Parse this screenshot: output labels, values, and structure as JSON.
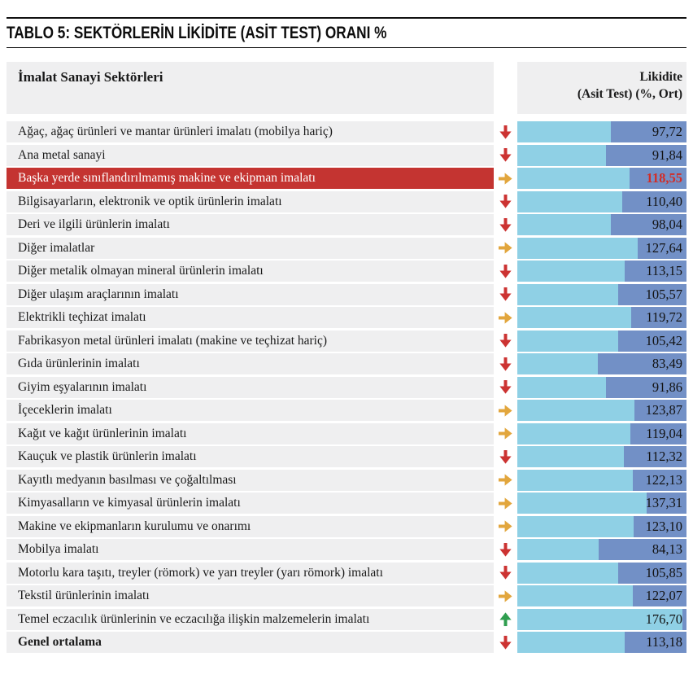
{
  "title": "TABLO 5: SEKTÖRLERİN LİKİDİTE (ASİT TEST) ORANI %",
  "header": {
    "left": "İmalat Sanayi Sektörleri",
    "right_line1": "Likidite",
    "right_line2": "(Asit Test) (%, Ort)"
  },
  "colors": {
    "band_gray": "#efeff0",
    "bar_light_blue": "#8fd0e5",
    "bar_dark_blue": "#7290c6",
    "highlight_row_red": "#c43431",
    "highlight_value_red": "#d32c26",
    "arrow_down_red": "#cc3332",
    "arrow_right_orange": "#e2a63d",
    "arrow_up_green": "#2f9e4f"
  },
  "icons": {
    "down": "down-arrow-icon",
    "right": "right-arrow-icon",
    "up": "up-arrow-icon"
  },
  "rows": [
    {
      "label": "Ağaç, ağaç ürünleri ve mantar ürünleri imalatı (mobilya hariç)",
      "trend": "down",
      "value": "97,72",
      "value_num": 97.72,
      "highlight": false,
      "bold": false
    },
    {
      "label": "Ana metal sanayi",
      "trend": "down",
      "value": "91,84",
      "value_num": 91.84,
      "highlight": false,
      "bold": false
    },
    {
      "label": "Başka yerde sınıflandırılmamış makine ve ekipman imalatı",
      "trend": "right",
      "value": "118,55",
      "value_num": 118.55,
      "highlight": true,
      "bold": false
    },
    {
      "label": "Bilgisayarların, elektronik ve optik ürünlerin imalatı",
      "trend": "down",
      "value": "110,40",
      "value_num": 110.4,
      "highlight": false,
      "bold": false
    },
    {
      "label": "Deri ve ilgili ürünlerin imalatı",
      "trend": "down",
      "value": "98,04",
      "value_num": 98.04,
      "highlight": false,
      "bold": false
    },
    {
      "label": "Diğer imalatlar",
      "trend": "right",
      "value": "127,64",
      "value_num": 127.64,
      "highlight": false,
      "bold": false
    },
    {
      "label": "Diğer metalik olmayan mineral ürünlerin imalatı",
      "trend": "down",
      "value": "113,15",
      "value_num": 113.15,
      "highlight": false,
      "bold": false
    },
    {
      "label": "Diğer ulaşım araçlarının imalatı",
      "trend": "down",
      "value": "105,57",
      "value_num": 105.57,
      "highlight": false,
      "bold": false
    },
    {
      "label": "Elektrikli teçhizat imalatı",
      "trend": "right",
      "value": "119,72",
      "value_num": 119.72,
      "highlight": false,
      "bold": false
    },
    {
      "label": "Fabrikasyon metal ürünleri imalatı (makine ve teçhizat hariç)",
      "trend": "down",
      "value": "105,42",
      "value_num": 105.42,
      "highlight": false,
      "bold": false
    },
    {
      "label": "Gıda ürünlerinin imalatı",
      "trend": "down",
      "value": "83,49",
      "value_num": 83.49,
      "highlight": false,
      "bold": false
    },
    {
      "label": "Giyim eşyalarının imalatı",
      "trend": "down",
      "value": "91,86",
      "value_num": 91.86,
      "highlight": false,
      "bold": false
    },
    {
      "label": "İçeceklerin imalatı",
      "trend": "right",
      "value": "123,87",
      "value_num": 123.87,
      "highlight": false,
      "bold": false
    },
    {
      "label": "Kağıt ve kağıt ürünlerinin imalatı",
      "trend": "right",
      "value": "119,04",
      "value_num": 119.04,
      "highlight": false,
      "bold": false
    },
    {
      "label": "Kauçuk ve plastik ürünlerin imalatı",
      "trend": "down",
      "value": "112,32",
      "value_num": 112.32,
      "highlight": false,
      "bold": false
    },
    {
      "label": "Kayıtlı medyanın basılması ve çoğaltılması",
      "trend": "right",
      "value": "122,13",
      "value_num": 122.13,
      "highlight": false,
      "bold": false
    },
    {
      "label": "Kimyasalların ve kimyasal ürünlerin imalatı",
      "trend": "right",
      "value": "137,31",
      "value_num": 137.31,
      "highlight": false,
      "bold": false
    },
    {
      "label": "Makine ve ekipmanların kurulumu ve onarımı",
      "trend": "right",
      "value": "123,10",
      "value_num": 123.1,
      "highlight": false,
      "bold": false
    },
    {
      "label": "Mobilya imalatı",
      "trend": "down",
      "value": "84,13",
      "value_num": 84.13,
      "highlight": false,
      "bold": false
    },
    {
      "label": "Motorlu kara taşıtı, treyler (römork) ve yarı treyler (yarı römork) imalatı",
      "trend": "down",
      "value": "105,85",
      "value_num": 105.85,
      "highlight": false,
      "bold": false
    },
    {
      "label": "Tekstil ürünlerinin imalatı",
      "trend": "right",
      "value": "122,07",
      "value_num": 122.07,
      "highlight": false,
      "bold": false
    },
    {
      "label": "Temel eczacılık ürünlerinin ve eczacılığa ilişkin malzemelerin imalatı",
      "trend": "up",
      "value": "176,70",
      "value_num": 176.7,
      "highlight": false,
      "bold": false
    },
    {
      "label": "Genel ortalama",
      "trend": "down",
      "value": "113,18",
      "value_num": 113.18,
      "highlight": false,
      "bold": true
    }
  ],
  "chart_data": {
    "type": "bar",
    "title": "TABLO 5: SEKTÖRLERİN LİKİDİTE (ASİT TEST) ORANI %",
    "xlabel": "",
    "ylabel": "Likidite (Asit Test) (%, Ort)",
    "orientation": "horizontal",
    "value_scale_max": 176.7,
    "grid": false,
    "legend": "none",
    "categories": [
      "Ağaç, ağaç ürünleri ve mantar ürünleri imalatı (mobilya hariç)",
      "Ana metal sanayi",
      "Başka yerde sınıflandırılmamış makine ve ekipman imalatı",
      "Bilgisayarların, elektronik ve optik ürünlerin imalatı",
      "Deri ve ilgili ürünlerin imalatı",
      "Diğer imalatlar",
      "Diğer metalik olmayan mineral ürünlerin imalatı",
      "Diğer ulaşım araçlarının imalatı",
      "Elektrikli teçhizat imalatı",
      "Fabrikasyon metal ürünleri imalatı (makine ve teçhizat hariç)",
      "Gıda ürünlerinin imalatı",
      "Giyim eşyalarının imalatı",
      "İçeceklerin imalatı",
      "Kağıt ve kağıt ürünlerinin imalatı",
      "Kauçuk ve plastik ürünlerin imalatı",
      "Kayıtlı medyanın basılması ve çoğaltılması",
      "Kimyasalların ve kimyasal ürünlerin imalatı",
      "Makine ve ekipmanların kurulumu ve onarımı",
      "Mobilya imalatı",
      "Motorlu kara taşıtı, treyler (römork) ve yarı treyler (yarı römork) imalatı",
      "Tekstil ürünlerinin imalatı",
      "Temel eczacılık ürünlerinin ve eczacılığa ilişkin malzemelerin imalatı",
      "Genel ortalama"
    ],
    "values": [
      97.72,
      91.84,
      118.55,
      110.4,
      98.04,
      127.64,
      113.15,
      105.57,
      119.72,
      105.42,
      83.49,
      91.86,
      123.87,
      119.04,
      112.32,
      122.13,
      137.31,
      123.1,
      84.13,
      105.85,
      122.07,
      176.7,
      113.18
    ],
    "trends": [
      "down",
      "down",
      "right",
      "down",
      "down",
      "right",
      "down",
      "down",
      "right",
      "down",
      "down",
      "down",
      "right",
      "right",
      "down",
      "right",
      "right",
      "right",
      "down",
      "down",
      "right",
      "up",
      "down"
    ],
    "highlighted_category_index": 2
  }
}
